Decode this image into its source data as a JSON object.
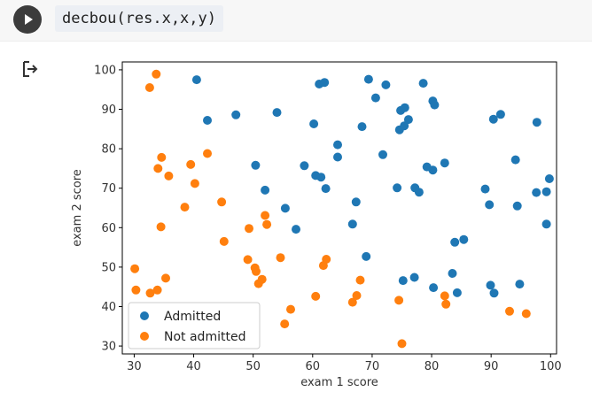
{
  "code_cell": {
    "code": "decbou(res.x,x,y)"
  },
  "icons": {
    "run": "play-circle-icon",
    "output": "output-redirect-icon"
  },
  "chart_data": {
    "type": "scatter",
    "title": "",
    "xlabel": "exam 1 score",
    "ylabel": "exam 2 score",
    "xlim": [
      28,
      101
    ],
    "ylim": [
      28,
      102
    ],
    "xticks": [
      30,
      40,
      50,
      60,
      70,
      80,
      90,
      100
    ],
    "yticks": [
      30,
      40,
      50,
      60,
      70,
      80,
      90,
      100
    ],
    "grid": false,
    "legend_position": "lower-left",
    "series": [
      {
        "name": "Admitted",
        "color": "#1f77b4",
        "points": [
          [
            40.5,
            97.5
          ],
          [
            42.3,
            87.2
          ],
          [
            47.1,
            88.6
          ],
          [
            50.4,
            75.8
          ],
          [
            52.0,
            69.5
          ],
          [
            54.0,
            89.2
          ],
          [
            55.4,
            64.9
          ],
          [
            57.2,
            59.6
          ],
          [
            58.6,
            75.7
          ],
          [
            60.2,
            86.3
          ],
          [
            60.5,
            73.2
          ],
          [
            61.1,
            96.4
          ],
          [
            61.4,
            72.8
          ],
          [
            62.0,
            96.8
          ],
          [
            62.2,
            69.9
          ],
          [
            64.2,
            81.0
          ],
          [
            64.2,
            77.9
          ],
          [
            66.7,
            60.9
          ],
          [
            67.3,
            66.5
          ],
          [
            68.3,
            85.6
          ],
          [
            69.0,
            52.7
          ],
          [
            69.4,
            97.6
          ],
          [
            70.6,
            92.9
          ],
          [
            71.8,
            78.5
          ],
          [
            72.3,
            96.2
          ],
          [
            74.2,
            70.1
          ],
          [
            74.6,
            84.8
          ],
          [
            74.8,
            89.7
          ],
          [
            75.2,
            46.6
          ],
          [
            75.4,
            85.8
          ],
          [
            75.5,
            90.4
          ],
          [
            76.1,
            87.4
          ],
          [
            77.1,
            47.4
          ],
          [
            77.2,
            70.1
          ],
          [
            77.9,
            69.0
          ],
          [
            78.6,
            96.6
          ],
          [
            79.2,
            75.4
          ],
          [
            80.2,
            74.6
          ],
          [
            80.2,
            92.1
          ],
          [
            80.3,
            44.8
          ],
          [
            80.5,
            91.1
          ],
          [
            82.2,
            76.4
          ],
          [
            83.5,
            48.4
          ],
          [
            83.9,
            56.3
          ],
          [
            84.3,
            43.5
          ],
          [
            85.4,
            57.0
          ],
          [
            89.0,
            69.8
          ],
          [
            89.7,
            65.8
          ],
          [
            89.9,
            45.4
          ],
          [
            90.4,
            87.5
          ],
          [
            90.5,
            43.4
          ],
          [
            91.6,
            88.7
          ],
          [
            94.1,
            77.2
          ],
          [
            94.4,
            65.5
          ],
          [
            94.8,
            45.7
          ],
          [
            97.6,
            68.9
          ],
          [
            97.7,
            86.7
          ],
          [
            99.3,
            69.1
          ],
          [
            99.3,
            60.9
          ],
          [
            99.8,
            72.4
          ]
        ]
      },
      {
        "name": "Not admitted",
        "color": "#ff7f0e",
        "points": [
          [
            30.1,
            49.6
          ],
          [
            30.3,
            44.2
          ],
          [
            32.6,
            95.5
          ],
          [
            32.7,
            43.4
          ],
          [
            33.7,
            98.9
          ],
          [
            33.9,
            44.2
          ],
          [
            34.0,
            75.0
          ],
          [
            34.5,
            60.2
          ],
          [
            34.6,
            77.8
          ],
          [
            35.3,
            47.2
          ],
          [
            35.8,
            73.1
          ],
          [
            38.5,
            65.2
          ],
          [
            39.5,
            76.0
          ],
          [
            40.2,
            71.2
          ],
          [
            42.3,
            78.8
          ],
          [
            44.7,
            66.5
          ],
          [
            45.1,
            56.5
          ],
          [
            49.1,
            51.9
          ],
          [
            49.3,
            59.8
          ],
          [
            50.3,
            49.8
          ],
          [
            50.5,
            48.9
          ],
          [
            50.9,
            45.8
          ],
          [
            51.5,
            46.9
          ],
          [
            52.0,
            63.1
          ],
          [
            52.3,
            60.8
          ],
          [
            54.6,
            52.4
          ],
          [
            55.3,
            35.6
          ],
          [
            56.3,
            39.3
          ],
          [
            60.5,
            42.6
          ],
          [
            61.8,
            50.4
          ],
          [
            62.3,
            52.0
          ],
          [
            66.7,
            41.1
          ],
          [
            67.4,
            42.8
          ],
          [
            68.0,
            46.7
          ],
          [
            74.5,
            41.6
          ],
          [
            75.0,
            30.6
          ],
          [
            82.2,
            42.7
          ],
          [
            82.4,
            40.6
          ],
          [
            93.1,
            38.8
          ],
          [
            95.9,
            38.2
          ]
        ]
      }
    ]
  }
}
